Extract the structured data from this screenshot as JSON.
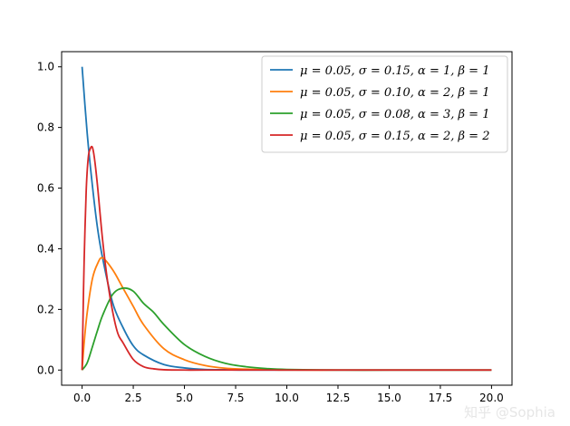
{
  "chart_data": {
    "type": "line",
    "title": "",
    "xlabel": "",
    "ylabel": "",
    "xlim": [
      -1.0,
      21.0
    ],
    "ylim": [
      -0.05,
      1.05
    ],
    "xticks": [
      0.0,
      2.5,
      5.0,
      7.5,
      10.0,
      12.5,
      15.0,
      17.5,
      20.0
    ],
    "xtick_labels": [
      "0.0",
      "2.5",
      "5.0",
      "7.5",
      "10.0",
      "12.5",
      "15.0",
      "17.5",
      "20.0"
    ],
    "yticks": [
      0.0,
      0.2,
      0.4,
      0.6,
      0.8,
      1.0
    ],
    "ytick_labels": [
      "0.0",
      "0.2",
      "0.4",
      "0.6",
      "0.8",
      "1.0"
    ],
    "grid": false,
    "legend_position": "top-right",
    "series": [
      {
        "name": "μ = 0.05,  σ = 0.15,  α = 1,  β = 1",
        "color": "#1f77b4",
        "x": [
          0,
          0.25,
          0.5,
          0.75,
          1.0,
          1.5,
          2.0,
          2.5,
          3.0,
          4.0,
          5.0,
          6.0,
          7.0,
          8.0,
          10.0,
          12.5,
          15.0,
          17.5,
          20.0
        ],
        "y": [
          1.0,
          0.78,
          0.61,
          0.47,
          0.37,
          0.22,
          0.14,
          0.08,
          0.05,
          0.018,
          0.007,
          0.002,
          0.001,
          0.0,
          0.0,
          0.0,
          0.0,
          0.0,
          0.0
        ]
      },
      {
        "name": "μ = 0.05,  σ = 0.10,  α = 2,  β = 1",
        "color": "#ff7f0e",
        "x": [
          0,
          0.1,
          0.25,
          0.5,
          0.75,
          1.0,
          1.5,
          2.0,
          2.5,
          3.0,
          4.0,
          5.0,
          6.0,
          7.0,
          8.0,
          10.0,
          12.5,
          15.0,
          17.5,
          20.0
        ],
        "y": [
          0.0,
          0.09,
          0.19,
          0.3,
          0.35,
          0.37,
          0.33,
          0.27,
          0.21,
          0.15,
          0.07,
          0.034,
          0.015,
          0.006,
          0.003,
          0.0,
          0.0,
          0.0,
          0.0,
          0.0
        ]
      },
      {
        "name": "μ = 0.05,  σ = 0.08,  α = 3,  β = 1",
        "color": "#2ca02c",
        "x": [
          0,
          0.25,
          0.5,
          0.75,
          1.0,
          1.5,
          2.0,
          2.5,
          3.0,
          3.5,
          4.0,
          5.0,
          6.0,
          7.0,
          8.0,
          9.0,
          10.0,
          12.5,
          15.0,
          17.5,
          20.0
        ],
        "y": [
          0.0,
          0.024,
          0.076,
          0.13,
          0.18,
          0.25,
          0.27,
          0.26,
          0.22,
          0.19,
          0.15,
          0.084,
          0.045,
          0.022,
          0.011,
          0.005,
          0.002,
          0.0,
          0.0,
          0.0,
          0.0
        ]
      },
      {
        "name": "μ = 0.05,  σ = 0.15,  α = 2,  β = 2",
        "color": "#d62728",
        "x": [
          0,
          0.05,
          0.1,
          0.2,
          0.3,
          0.4,
          0.5,
          0.6,
          0.75,
          1.0,
          1.25,
          1.5,
          1.75,
          2.0,
          2.5,
          3.0,
          3.5,
          4.0,
          5.0,
          6.0,
          8.0,
          10.0,
          12.5,
          15.0,
          17.5,
          20.0
        ],
        "y": [
          0.0,
          0.19,
          0.36,
          0.59,
          0.7,
          0.73,
          0.735,
          0.7,
          0.61,
          0.43,
          0.29,
          0.19,
          0.12,
          0.09,
          0.035,
          0.011,
          0.004,
          0.001,
          0.0,
          0.0,
          0.0,
          0.0,
          0.0,
          0.0,
          0.0,
          0.0
        ]
      }
    ]
  },
  "watermark": "知乎 @Sophia"
}
